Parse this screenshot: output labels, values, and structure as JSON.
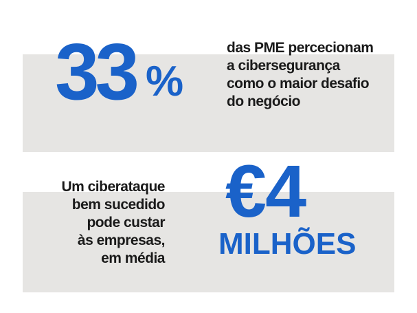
{
  "stat1": {
    "number": "33",
    "unit": "%",
    "description_lines": [
      "das PME percecionam",
      "a cibersegurança",
      "como o maior desafio",
      "do negócio"
    ]
  },
  "stat2": {
    "description_lines": [
      "Um ciberataque",
      "bem sucedido",
      "pode custar",
      "às empresas,",
      "em média"
    ],
    "number": "€4",
    "unit": "MILHÕES"
  },
  "colors": {
    "accent_blue": "#1a62c9",
    "panel_gray": "#e6e5e3",
    "text_dark": "#1a1a1a"
  }
}
